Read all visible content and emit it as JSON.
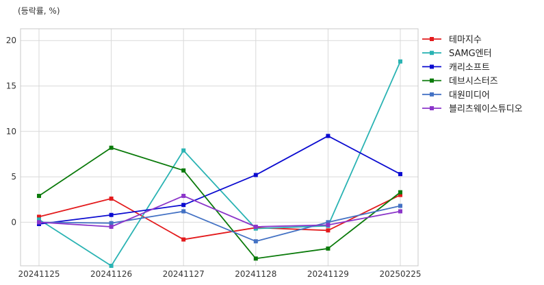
{
  "chart_data": {
    "type": "line",
    "unit_label": "(등락률, %)",
    "title": "",
    "xlabel": "",
    "ylabel": "",
    "categories": [
      "20241125",
      "20241126",
      "20241127",
      "20241128",
      "20241129",
      "20250225"
    ],
    "ylim": [
      -4.8,
      21.3
    ],
    "yticks": [
      0,
      5,
      10,
      15,
      20
    ],
    "grid": true,
    "legend_position": "right",
    "series": [
      {
        "name": "테마지수",
        "color": "#e31a1c",
        "values": [
          0.6,
          2.6,
          -1.9,
          -0.6,
          -0.9,
          3.0
        ]
      },
      {
        "name": "SAMG엔터",
        "color": "#2ab3b3",
        "values": [
          0.3,
          -4.8,
          7.9,
          -0.7,
          -0.4,
          17.7
        ]
      },
      {
        "name": "캐리소프트",
        "color": "#0b0bd0",
        "values": [
          -0.2,
          0.8,
          1.9,
          5.2,
          9.5,
          5.3
        ]
      },
      {
        "name": "데브시스터즈",
        "color": "#0a7a0a",
        "values": [
          2.9,
          8.2,
          5.7,
          -4.0,
          -2.9,
          3.3
        ]
      },
      {
        "name": "대원미디어",
        "color": "#4472c4",
        "values": [
          0.0,
          -0.1,
          1.2,
          -2.1,
          0.0,
          1.8
        ]
      },
      {
        "name": "블리츠웨이스튜디오",
        "color": "#8b35c9",
        "values": [
          0.0,
          -0.5,
          2.9,
          -0.5,
          -0.3,
          1.2
        ]
      }
    ]
  }
}
